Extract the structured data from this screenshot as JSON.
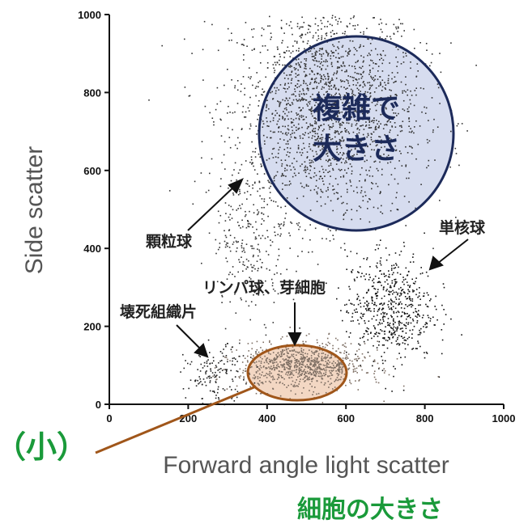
{
  "chart_data": {
    "type": "scatter",
    "title": "",
    "xlabel": "Forward angle light scatter",
    "ylabel": "Side scatter",
    "xlim": [
      0,
      1000
    ],
    "ylim": [
      0,
      1000
    ],
    "x_ticks": [
      "0",
      "200",
      "400",
      "600",
      "800",
      "1000"
    ],
    "y_ticks": [
      "0",
      "200",
      "400",
      "600",
      "800",
      "1000"
    ],
    "grid": false,
    "clusters": [
      {
        "name": "複雑で大きさ",
        "center": [
          550,
          760
        ],
        "spread": [
          120,
          140
        ],
        "count": 2000,
        "color": "#333333"
      },
      {
        "name": "単核球",
        "center": [
          710,
          250
        ],
        "spread": [
          55,
          70
        ],
        "count": 600,
        "color": "#111111"
      },
      {
        "name": "リンパ球、芽細胞",
        "center": [
          490,
          100
        ],
        "spread": [
          80,
          30
        ],
        "count": 900,
        "color": "#7d6e63"
      },
      {
        "name": "壊死組織片",
        "center": [
          270,
          80
        ],
        "spread": [
          40,
          35
        ],
        "count": 150,
        "color": "#222222"
      },
      {
        "name": "顆粒球",
        "center": [
          360,
          430
        ],
        "spread": [
          50,
          100
        ],
        "count": 250,
        "color": "#333333"
      }
    ]
  },
  "annotations": {
    "complex_large": [
      "複雑で",
      "大きさ"
    ],
    "monocyte": "単核球",
    "granulocyte": "顆粒球",
    "lymphocyte": "リンパ球、芽細胞",
    "necrotic": "壊死組織片",
    "small": "（小）",
    "cell_size": "細胞の大きさ"
  },
  "colors": {
    "highlight_big_fill": "#c8d0ea",
    "highlight_big_stroke": "#1c2a5a",
    "highlight_small_fill": "#f2d3bd",
    "highlight_small_stroke": "#a0561a",
    "green": "#1a9a3a"
  }
}
